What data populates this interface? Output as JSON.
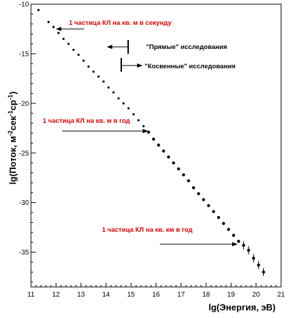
{
  "chart_data": {
    "type": "scatter",
    "xlabel": "lg(Энергия, эВ)",
    "ylabel_main": "lg(Поток,  м",
    "ylabel_sup1": "-2",
    "ylabel_mid": "сек",
    "ylabel_sup2": "-1",
    "ylabel_mid2": "ср",
    "ylabel_sup3": "-1",
    "ylabel_end": ")",
    "xlim": [
      11,
      21
    ],
    "ylim": [
      -38.5,
      -10
    ],
    "x_ticks": [
      "11",
      "12",
      "13",
      "14",
      "15",
      "16",
      "17",
      "18",
      "19",
      "20",
      "21"
    ],
    "y_ticks": [
      "-10",
      "-15",
      "-20",
      "-25",
      "-30",
      "-35"
    ],
    "grid": false,
    "series": [
      {
        "x": [
          11.3,
          11.7,
          11.9,
          12.1,
          12.3,
          12.5,
          12.7,
          12.9,
          13.1,
          13.3,
          13.5,
          13.7,
          13.9,
          14.1,
          14.3,
          14.5,
          14.7,
          14.9,
          15.1,
          15.3,
          15.5,
          15.7,
          15.9,
          16.1,
          16.3,
          16.5,
          16.7,
          16.9,
          17.1,
          17.3,
          17.5,
          17.7,
          17.9,
          18.1,
          18.3,
          18.5,
          18.7,
          18.9,
          19.1,
          19.3,
          19.5,
          19.7,
          19.9,
          20.1,
          20.3
        ],
        "y": [
          -10.6,
          -11.8,
          -12.3,
          -12.9,
          -13.5,
          -14.0,
          -14.6,
          -15.1,
          -15.7,
          -16.3,
          -16.8,
          -17.3,
          -17.8,
          -18.4,
          -18.9,
          -19.5,
          -20.0,
          -20.5,
          -21.1,
          -21.7,
          -22.3,
          -22.9,
          -23.6,
          -24.2,
          -24.8,
          -25.4,
          -26.0,
          -26.6,
          -27.2,
          -27.8,
          -28.5,
          -29.1,
          -29.7,
          -30.3,
          -30.9,
          -31.5,
          -32.1,
          -32.7,
          -33.3,
          -33.9,
          -34.3,
          -34.8,
          -35.6,
          -36.3,
          -37.0
        ]
      }
    ],
    "annotations": [
      {
        "text": "1 частица КЛ на кв. м в секунду",
        "color": "#e00000"
      },
      {
        "text": "\"Прямые\" исследования",
        "color": "#000000"
      },
      {
        "text": "\"Косвенные\" исследования",
        "color": "#000000"
      },
      {
        "text": "1 частица КЛ на кв. м в  год",
        "color": "#e00000"
      },
      {
        "text": "1 частица КЛ на кв.   км в год",
        "color": "#e00000"
      }
    ]
  }
}
